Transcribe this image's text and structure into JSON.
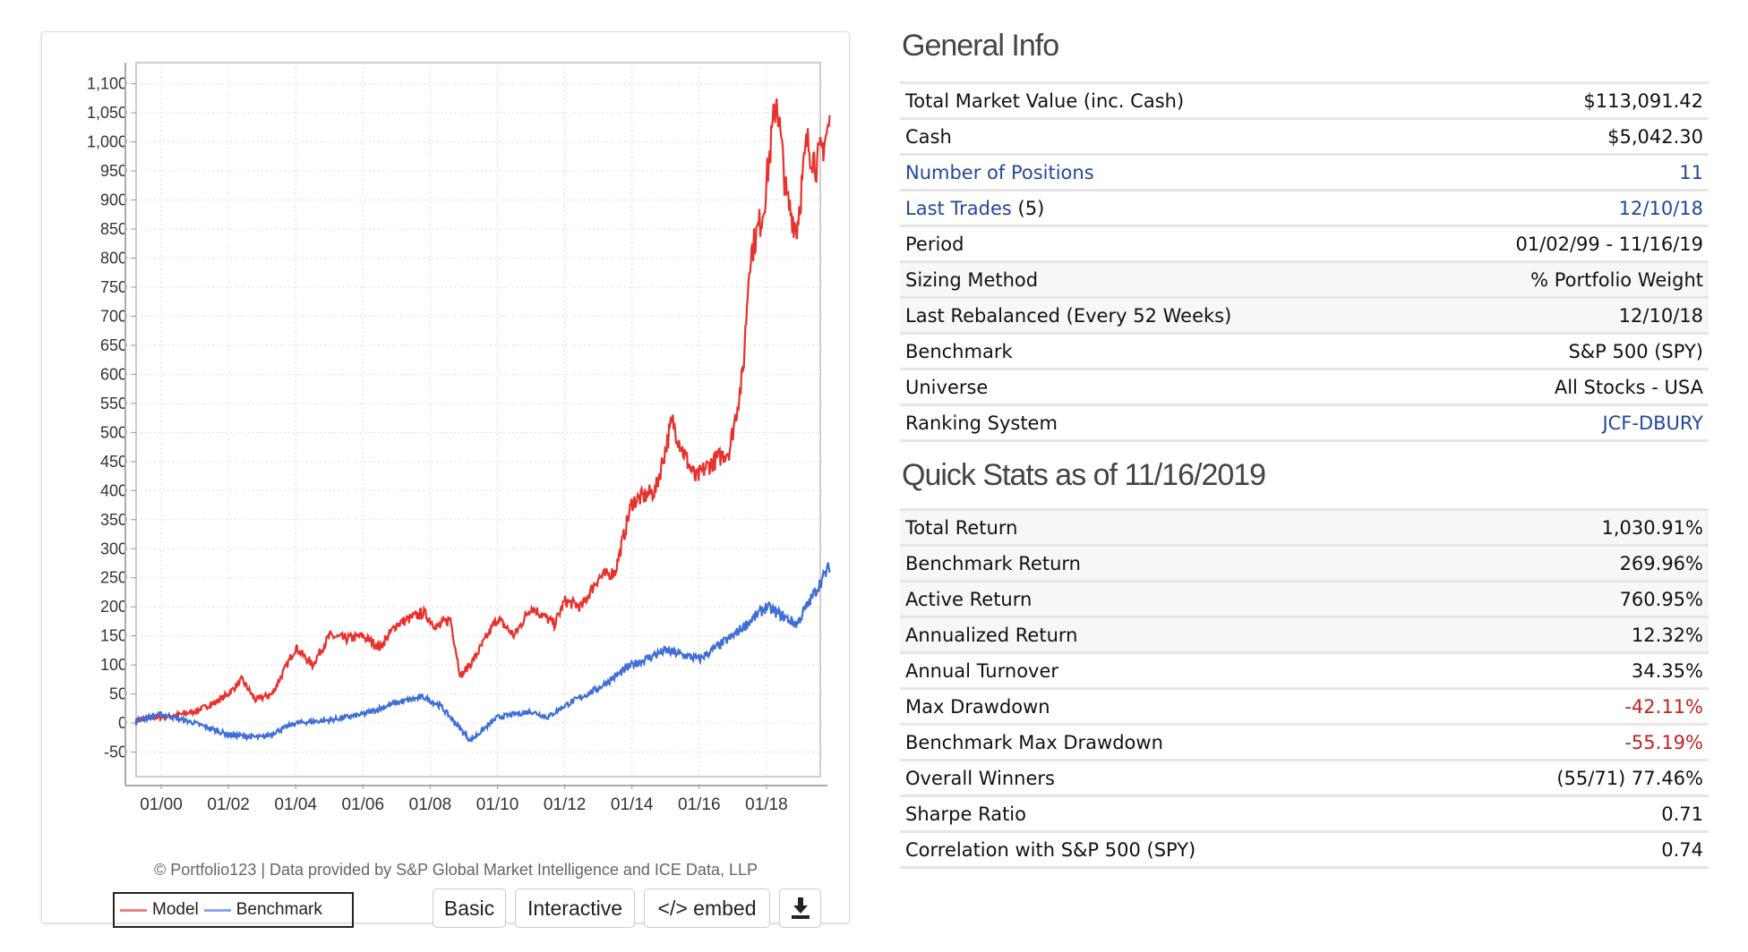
{
  "chart_data": {
    "type": "line",
    "ylim": [
      -50,
      1100
    ],
    "yticks": [
      "1,100",
      "1,050",
      "1,000",
      "950",
      "900",
      "850",
      "800",
      "750",
      "700",
      "650",
      "600",
      "550",
      "500",
      "450",
      "400",
      "350",
      "300",
      "250",
      "200",
      "150",
      "100",
      "50",
      "0",
      "-50"
    ],
    "ytick_values": [
      1100,
      1050,
      1000,
      950,
      900,
      850,
      800,
      750,
      700,
      650,
      600,
      550,
      500,
      450,
      400,
      350,
      300,
      250,
      200,
      150,
      100,
      50,
      0,
      -50
    ],
    "xticks": [
      "01/00",
      "01/02",
      "01/04",
      "01/06",
      "01/08",
      "01/10",
      "01/12",
      "01/14",
      "01/16",
      "01/18"
    ],
    "xtick_values": [
      2000,
      2002,
      2004,
      2006,
      2008,
      2010,
      2012,
      2014,
      2016,
      2018
    ],
    "xlim": [
      1999.0,
      2019.88
    ],
    "grid": true,
    "legend_placement": "bottom-left",
    "series": [
      {
        "name": "Model",
        "color": "#e8302c",
        "points": [
          [
            1999.0,
            0
          ],
          [
            1999.5,
            8
          ],
          [
            2000,
            10
          ],
          [
            2000.6,
            15
          ],
          [
            2001,
            20
          ],
          [
            2001.6,
            35
          ],
          [
            2002,
            50
          ],
          [
            2002.4,
            75
          ],
          [
            2002.8,
            40
          ],
          [
            2003.3,
            50
          ],
          [
            2004,
            130
          ],
          [
            2004.5,
            100
          ],
          [
            2005,
            150
          ],
          [
            2005.5,
            145
          ],
          [
            2006,
            150
          ],
          [
            2006.5,
            130
          ],
          [
            2007,
            170
          ],
          [
            2007.8,
            190
          ],
          [
            2008.2,
            165
          ],
          [
            2008.6,
            180
          ],
          [
            2008.9,
            80
          ],
          [
            2009.3,
            110
          ],
          [
            2010,
            180
          ],
          [
            2010.5,
            150
          ],
          [
            2011,
            200
          ],
          [
            2011.7,
            170
          ],
          [
            2012,
            210
          ],
          [
            2012.5,
            200
          ],
          [
            2013,
            250
          ],
          [
            2013.5,
            260
          ],
          [
            2014,
            380
          ],
          [
            2014.7,
            400
          ],
          [
            2015.2,
            520
          ],
          [
            2015.5,
            470
          ],
          [
            2015.9,
            420
          ],
          [
            2016.2,
            440
          ],
          [
            2016.9,
            470
          ],
          [
            2017.3,
            600
          ],
          [
            2017.5,
            800
          ],
          [
            2017.9,
            880
          ],
          [
            2018.3,
            1080
          ],
          [
            2018.6,
            900
          ],
          [
            2018.9,
            850
          ],
          [
            2019.2,
            1000
          ],
          [
            2019.5,
            960
          ],
          [
            2019.88,
            1030
          ]
        ]
      },
      {
        "name": "Benchmark",
        "color": "#3f6fd6",
        "points": [
          [
            1999.0,
            0
          ],
          [
            2000,
            15
          ],
          [
            2001,
            0
          ],
          [
            2002,
            -20
          ],
          [
            2003,
            -25
          ],
          [
            2004,
            0
          ],
          [
            2005,
            5
          ],
          [
            2006,
            15
          ],
          [
            2007,
            35
          ],
          [
            2007.8,
            45
          ],
          [
            2008.3,
            30
          ],
          [
            2009.2,
            -30
          ],
          [
            2010,
            10
          ],
          [
            2011,
            20
          ],
          [
            2011.5,
            10
          ],
          [
            2012,
            30
          ],
          [
            2013,
            60
          ],
          [
            2014,
            100
          ],
          [
            2015,
            125
          ],
          [
            2016,
            110
          ],
          [
            2017,
            150
          ],
          [
            2018,
            200
          ],
          [
            2018.9,
            170
          ],
          [
            2019.88,
            270
          ]
        ]
      }
    ]
  },
  "credit": "© Portfolio123 | Data provided by S&P Global Market Intelligence and ICE Data, LLP",
  "legend": {
    "model": "Model",
    "benchmark": "Benchmark"
  },
  "buttons": {
    "basic": "Basic",
    "interactive": "Interactive",
    "embed": "</> embed"
  },
  "general": {
    "title": "General Info",
    "rows": [
      {
        "label": "Total Market Value (inc. Cash)",
        "value": "$113,091.42"
      },
      {
        "label": "Cash",
        "value": "$5,042.30"
      },
      {
        "label": "Number of Positions",
        "value": "11"
      },
      {
        "label": "Last Trades",
        "suffix": "(5)",
        "value": "12/10/18"
      },
      {
        "label": "Period",
        "value": "01/02/99 - 11/16/19"
      },
      {
        "label": "Sizing Method",
        "value": "% Portfolio Weight"
      },
      {
        "label": "Last Rebalanced (Every 52 Weeks)",
        "value": "12/10/18"
      },
      {
        "label": "Benchmark",
        "value": "S&P 500 (SPY)"
      },
      {
        "label": "Universe",
        "value": "All Stocks - USA"
      },
      {
        "label": "Ranking System",
        "value": "JCF-DBURY"
      }
    ]
  },
  "stats": {
    "title": "Quick Stats as of 11/16/2019",
    "rows": [
      {
        "label": "Total Return",
        "value": "1,030.91%"
      },
      {
        "label": "Benchmark Return",
        "value": "269.96%"
      },
      {
        "label": "Active Return",
        "value": "760.95%"
      },
      {
        "label": "Annualized Return",
        "value": "12.32%"
      },
      {
        "label": "Annual Turnover",
        "value": "34.35%"
      },
      {
        "label": "Max Drawdown",
        "value": "-42.11%"
      },
      {
        "label": "Benchmark Max Drawdown",
        "value": "-55.19%"
      },
      {
        "label": "Overall Winners",
        "value": "(55/71) 77.46%"
      },
      {
        "label": "Sharpe Ratio",
        "value": "0.71"
      },
      {
        "label": "Correlation with S&P 500 (SPY)",
        "value": "0.74"
      }
    ]
  }
}
